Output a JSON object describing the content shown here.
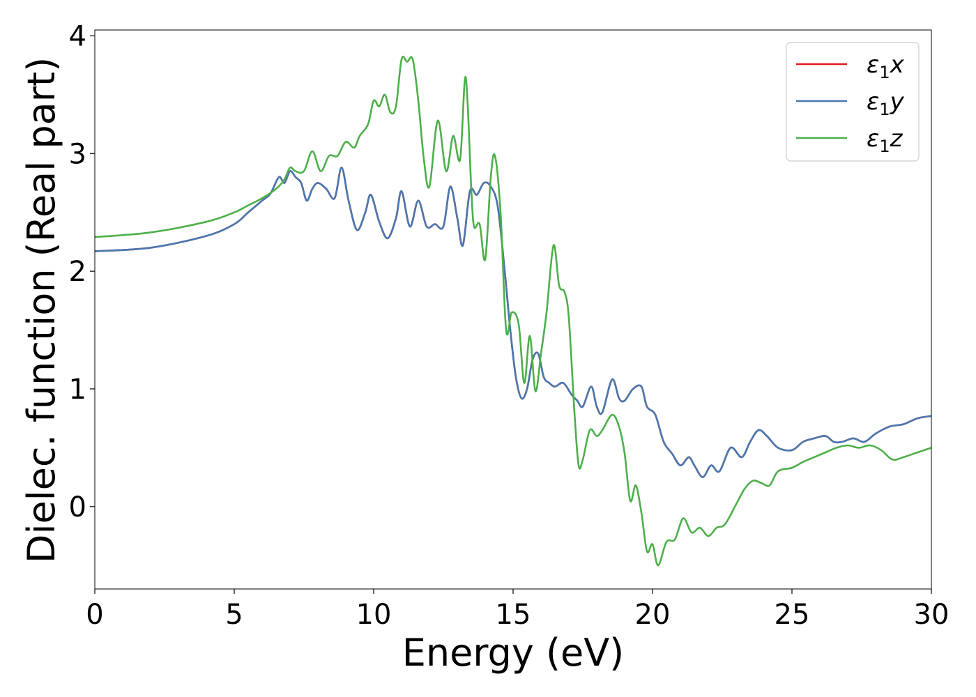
{
  "chart_data": {
    "type": "line",
    "title": "",
    "xlabel": "Energy (eV)",
    "ylabel": "Dielec. function (Real part)",
    "xlim": [
      0,
      30
    ],
    "ylim": [
      -0.7,
      4.05
    ],
    "xticks": [
      0,
      5,
      10,
      15,
      20,
      25,
      30
    ],
    "xtick_labels": [
      "0",
      "5",
      "10",
      "15",
      "20",
      "25",
      "30"
    ],
    "yticks": [
      0,
      1,
      2,
      3,
      4
    ],
    "ytick_labels": [
      "0",
      "1",
      "2",
      "3",
      "4"
    ],
    "grid": false,
    "legend_position": "top-right",
    "series": [
      {
        "name": "ε₁x",
        "legend_main": "ε",
        "legend_sub": "1",
        "legend_var": "x",
        "color": "#e41a1c",
        "x": [
          0,
          2,
          4,
          5,
          5.5,
          6,
          6.3,
          6.6,
          6.8,
          7.0,
          7.2,
          7.4,
          7.6,
          7.8,
          8.0,
          8.3,
          8.6,
          8.85,
          9.1,
          9.4,
          9.7,
          9.9,
          10.2,
          10.5,
          10.8,
          11.0,
          11.3,
          11.6,
          11.9,
          12.2,
          12.5,
          12.75,
          13.0,
          13.2,
          13.45,
          13.7,
          13.95,
          14.2,
          14.45,
          14.7,
          14.9,
          15.1,
          15.3,
          15.5,
          15.7,
          15.9,
          16.1,
          16.3,
          16.5,
          16.8,
          17.1,
          17.3,
          17.5,
          17.8,
          18.0,
          18.2,
          18.55,
          18.8,
          19.0,
          19.3,
          19.6,
          19.8,
          20.1,
          20.4,
          20.7,
          21.0,
          21.3,
          21.5,
          21.8,
          22.1,
          22.4,
          22.8,
          23.2,
          23.5,
          23.8,
          24.1,
          24.5,
          25.0,
          25.4,
          25.8,
          26.2,
          26.5,
          26.8,
          27.2,
          27.6,
          28.0,
          28.5,
          29.0,
          29.5,
          30.0
        ],
        "y": [
          2.17,
          2.2,
          2.3,
          2.4,
          2.5,
          2.6,
          2.66,
          2.8,
          2.75,
          2.85,
          2.8,
          2.75,
          2.6,
          2.7,
          2.75,
          2.7,
          2.62,
          2.88,
          2.6,
          2.35,
          2.5,
          2.65,
          2.42,
          2.28,
          2.45,
          2.68,
          2.38,
          2.6,
          2.38,
          2.4,
          2.38,
          2.72,
          2.45,
          2.22,
          2.68,
          2.65,
          2.75,
          2.72,
          2.55,
          2.0,
          1.5,
          1.1,
          0.92,
          1.0,
          1.25,
          1.3,
          1.1,
          1.05,
          1.02,
          1.05,
          0.95,
          0.9,
          0.85,
          1.02,
          0.85,
          0.8,
          1.08,
          0.92,
          0.9,
          1.0,
          1.02,
          0.85,
          0.78,
          0.55,
          0.45,
          0.35,
          0.42,
          0.35,
          0.25,
          0.35,
          0.3,
          0.5,
          0.42,
          0.55,
          0.65,
          0.6,
          0.5,
          0.48,
          0.55,
          0.58,
          0.6,
          0.55,
          0.55,
          0.58,
          0.55,
          0.62,
          0.68,
          0.7,
          0.75,
          0.77
        ]
      },
      {
        "name": "ε₁y",
        "legend_main": "ε",
        "legend_sub": "1",
        "legend_var": "y",
        "color": "#4878b0",
        "x": [
          0,
          2,
          4,
          5,
          5.5,
          6,
          6.3,
          6.6,
          6.8,
          7.0,
          7.2,
          7.4,
          7.6,
          7.8,
          8.0,
          8.3,
          8.6,
          8.85,
          9.1,
          9.4,
          9.7,
          9.9,
          10.2,
          10.5,
          10.8,
          11.0,
          11.3,
          11.6,
          11.9,
          12.2,
          12.5,
          12.75,
          13.0,
          13.2,
          13.45,
          13.7,
          13.95,
          14.2,
          14.45,
          14.7,
          14.9,
          15.1,
          15.3,
          15.5,
          15.7,
          15.9,
          16.1,
          16.3,
          16.5,
          16.8,
          17.1,
          17.3,
          17.5,
          17.8,
          18.0,
          18.2,
          18.55,
          18.8,
          19.0,
          19.3,
          19.6,
          19.8,
          20.1,
          20.4,
          20.7,
          21.0,
          21.3,
          21.5,
          21.8,
          22.1,
          22.4,
          22.8,
          23.2,
          23.5,
          23.8,
          24.1,
          24.5,
          25.0,
          25.4,
          25.8,
          26.2,
          26.5,
          26.8,
          27.2,
          27.6,
          28.0,
          28.5,
          29.0,
          29.5,
          30.0
        ],
        "y": [
          2.17,
          2.2,
          2.3,
          2.4,
          2.5,
          2.6,
          2.66,
          2.8,
          2.75,
          2.85,
          2.8,
          2.75,
          2.6,
          2.7,
          2.75,
          2.7,
          2.62,
          2.88,
          2.6,
          2.35,
          2.5,
          2.65,
          2.42,
          2.28,
          2.45,
          2.68,
          2.38,
          2.6,
          2.38,
          2.4,
          2.38,
          2.72,
          2.45,
          2.22,
          2.68,
          2.65,
          2.75,
          2.72,
          2.55,
          2.0,
          1.5,
          1.1,
          0.92,
          1.0,
          1.25,
          1.3,
          1.1,
          1.05,
          1.02,
          1.05,
          0.95,
          0.9,
          0.85,
          1.02,
          0.85,
          0.8,
          1.08,
          0.92,
          0.9,
          1.0,
          1.02,
          0.85,
          0.78,
          0.55,
          0.45,
          0.35,
          0.42,
          0.35,
          0.25,
          0.35,
          0.3,
          0.5,
          0.42,
          0.55,
          0.65,
          0.6,
          0.5,
          0.48,
          0.55,
          0.58,
          0.6,
          0.55,
          0.55,
          0.58,
          0.55,
          0.62,
          0.68,
          0.7,
          0.75,
          0.77
        ]
      },
      {
        "name": "ε₁z",
        "legend_main": "ε",
        "legend_sub": "1",
        "legend_var": "z",
        "color": "#4daf4a",
        "x": [
          0,
          2,
          4,
          5,
          5.5,
          6,
          6.5,
          6.8,
          7.0,
          7.2,
          7.5,
          7.8,
          8.1,
          8.4,
          8.7,
          9.0,
          9.3,
          9.5,
          9.8,
          10.0,
          10.2,
          10.4,
          10.6,
          10.8,
          11.0,
          11.2,
          11.4,
          11.6,
          11.8,
          12.0,
          12.3,
          12.6,
          12.85,
          13.1,
          13.3,
          13.5,
          13.6,
          13.8,
          14.0,
          14.2,
          14.35,
          14.55,
          14.75,
          14.95,
          15.2,
          15.4,
          15.6,
          15.8,
          16.0,
          16.2,
          16.45,
          16.65,
          16.85,
          17.0,
          17.2,
          17.35,
          17.5,
          17.75,
          18.0,
          18.2,
          18.55,
          18.8,
          19.0,
          19.2,
          19.4,
          19.6,
          19.8,
          20.0,
          20.2,
          20.5,
          20.8,
          21.1,
          21.4,
          21.7,
          22.0,
          22.3,
          22.6,
          23.0,
          23.3,
          23.6,
          23.9,
          24.2,
          24.5,
          25.0,
          25.4,
          25.8,
          26.2,
          26.6,
          27.0,
          27.4,
          27.8,
          28.2,
          28.6,
          29.0,
          29.5,
          30.0
        ],
        "y": [
          2.29,
          2.33,
          2.42,
          2.5,
          2.56,
          2.62,
          2.7,
          2.78,
          2.88,
          2.85,
          2.85,
          3.02,
          2.85,
          2.98,
          2.98,
          3.1,
          3.05,
          3.15,
          3.25,
          3.45,
          3.4,
          3.5,
          3.35,
          3.4,
          3.8,
          3.78,
          3.8,
          3.45,
          2.95,
          2.72,
          3.28,
          2.85,
          3.15,
          2.95,
          3.65,
          2.7,
          2.38,
          2.4,
          2.1,
          2.8,
          2.98,
          2.5,
          1.5,
          1.65,
          1.55,
          1.05,
          1.45,
          0.98,
          1.3,
          1.65,
          2.22,
          1.88,
          1.82,
          1.6,
          0.8,
          0.35,
          0.4,
          0.65,
          0.6,
          0.65,
          0.78,
          0.68,
          0.45,
          0.05,
          0.18,
          -0.05,
          -0.38,
          -0.32,
          -0.5,
          -0.3,
          -0.28,
          -0.1,
          -0.22,
          -0.18,
          -0.25,
          -0.18,
          -0.15,
          0.02,
          0.15,
          0.22,
          0.2,
          0.18,
          0.3,
          0.33,
          0.38,
          0.42,
          0.46,
          0.5,
          0.52,
          0.5,
          0.52,
          0.48,
          0.4,
          0.42,
          0.46,
          0.5
        ]
      }
    ]
  }
}
